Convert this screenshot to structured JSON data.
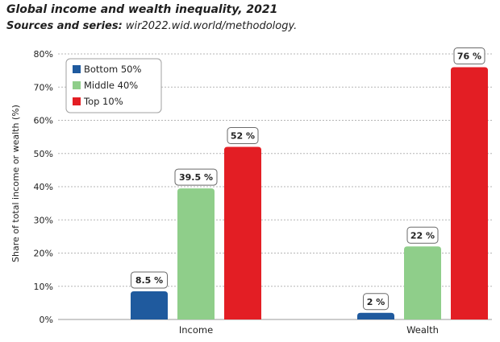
{
  "header": {
    "title": "Global income and wealth inequality, 2021",
    "subtitle_lead": "Sources and series:",
    "subtitle_rest": " wir2022.wid.world/methodology."
  },
  "chart_data": {
    "type": "bar",
    "title": "Global income and wealth inequality, 2021",
    "xlabel": "",
    "ylabel": "Share of total income or wealth (%)",
    "categories": [
      "Income",
      "Wealth"
    ],
    "series": [
      {
        "name": "Bottom 50%",
        "values": [
          8.5,
          2
        ],
        "labels": [
          "8.5 %",
          "2 %"
        ],
        "color": "#1f5a9e"
      },
      {
        "name": "Middle 40%",
        "values": [
          39.5,
          22
        ],
        "labels": [
          "39.5 %",
          "22 %"
        ],
        "color": "#8fce8a"
      },
      {
        "name": "Top 10%",
        "values": [
          52,
          76
        ],
        "labels": [
          "52 %",
          "76 %"
        ],
        "color": "#e31e24"
      }
    ],
    "ylim": [
      0,
      80
    ],
    "yticks": [
      0,
      10,
      20,
      30,
      40,
      50,
      60,
      70,
      80
    ],
    "ytick_labels": [
      "0%",
      "10%",
      "20%",
      "30%",
      "40%",
      "50%",
      "60%",
      "70%",
      "80%"
    ],
    "grid": true,
    "legend_position": "top-left"
  }
}
